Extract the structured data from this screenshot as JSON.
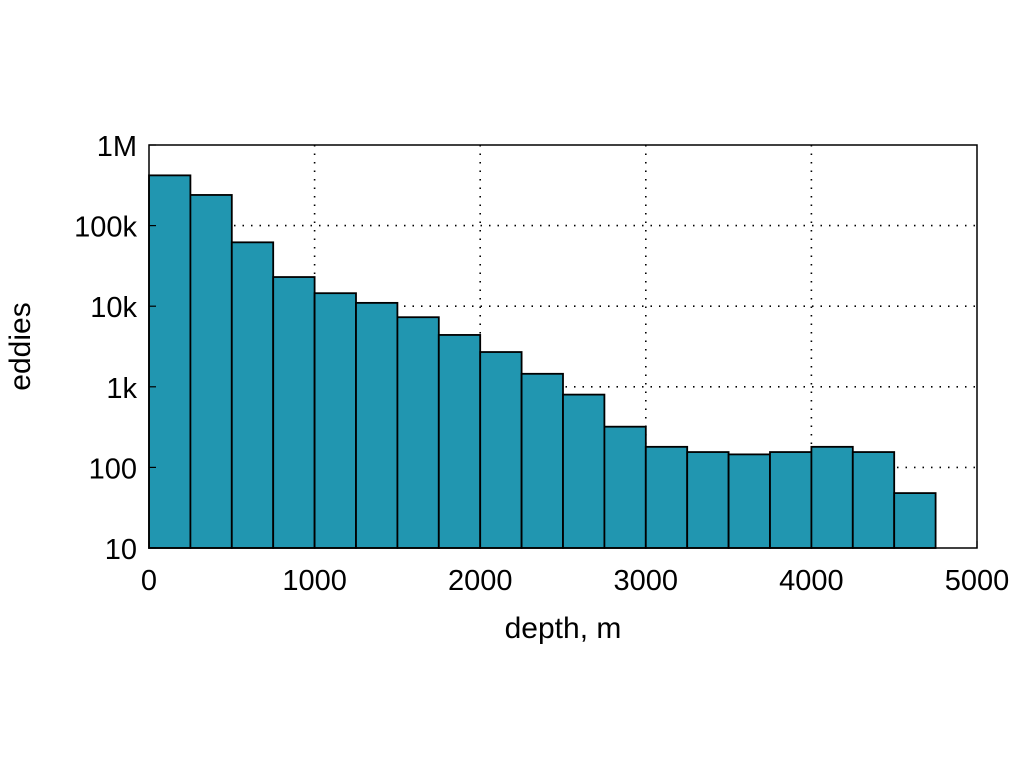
{
  "chart_data": {
    "type": "bar",
    "title": "",
    "xlabel": "depth, m",
    "ylabel": "eddies",
    "xlim": [
      0,
      5000
    ],
    "ylim": [
      10,
      1000000
    ],
    "y_scale": "log",
    "grid": true,
    "bin_width": 250,
    "bar_color": "#2196b0",
    "bar_edge_color": "#000000",
    "x_ticks": [
      0,
      1000,
      2000,
      3000,
      4000,
      5000
    ],
    "x_tick_labels": [
      "0",
      "1000",
      "2000",
      "3000",
      "4000",
      "5000"
    ],
    "y_ticks": [
      10,
      100,
      1000,
      10000,
      100000,
      1000000
    ],
    "y_tick_labels": [
      "10",
      "100",
      "1k",
      "10k",
      "100k",
      "1M"
    ],
    "bins": [
      {
        "x0": 0,
        "x1": 250,
        "value": 420000
      },
      {
        "x0": 250,
        "x1": 500,
        "value": 240000
      },
      {
        "x0": 500,
        "x1": 750,
        "value": 62000
      },
      {
        "x0": 750,
        "x1": 1000,
        "value": 23000
      },
      {
        "x0": 1000,
        "x1": 1250,
        "value": 14500
      },
      {
        "x0": 1250,
        "x1": 1500,
        "value": 11000
      },
      {
        "x0": 1500,
        "x1": 1750,
        "value": 7300
      },
      {
        "x0": 1750,
        "x1": 2000,
        "value": 4400
      },
      {
        "x0": 2000,
        "x1": 2250,
        "value": 2700
      },
      {
        "x0": 2250,
        "x1": 2500,
        "value": 1450
      },
      {
        "x0": 2500,
        "x1": 2750,
        "value": 800
      },
      {
        "x0": 2750,
        "x1": 3000,
        "value": 320
      },
      {
        "x0": 3000,
        "x1": 3250,
        "value": 180
      },
      {
        "x0": 3250,
        "x1": 3500,
        "value": 155
      },
      {
        "x0": 3500,
        "x1": 3750,
        "value": 145
      },
      {
        "x0": 3750,
        "x1": 4000,
        "value": 155
      },
      {
        "x0": 4000,
        "x1": 4250,
        "value": 180
      },
      {
        "x0": 4250,
        "x1": 4500,
        "value": 155
      },
      {
        "x0": 4500,
        "x1": 4750,
        "value": 48
      }
    ]
  }
}
